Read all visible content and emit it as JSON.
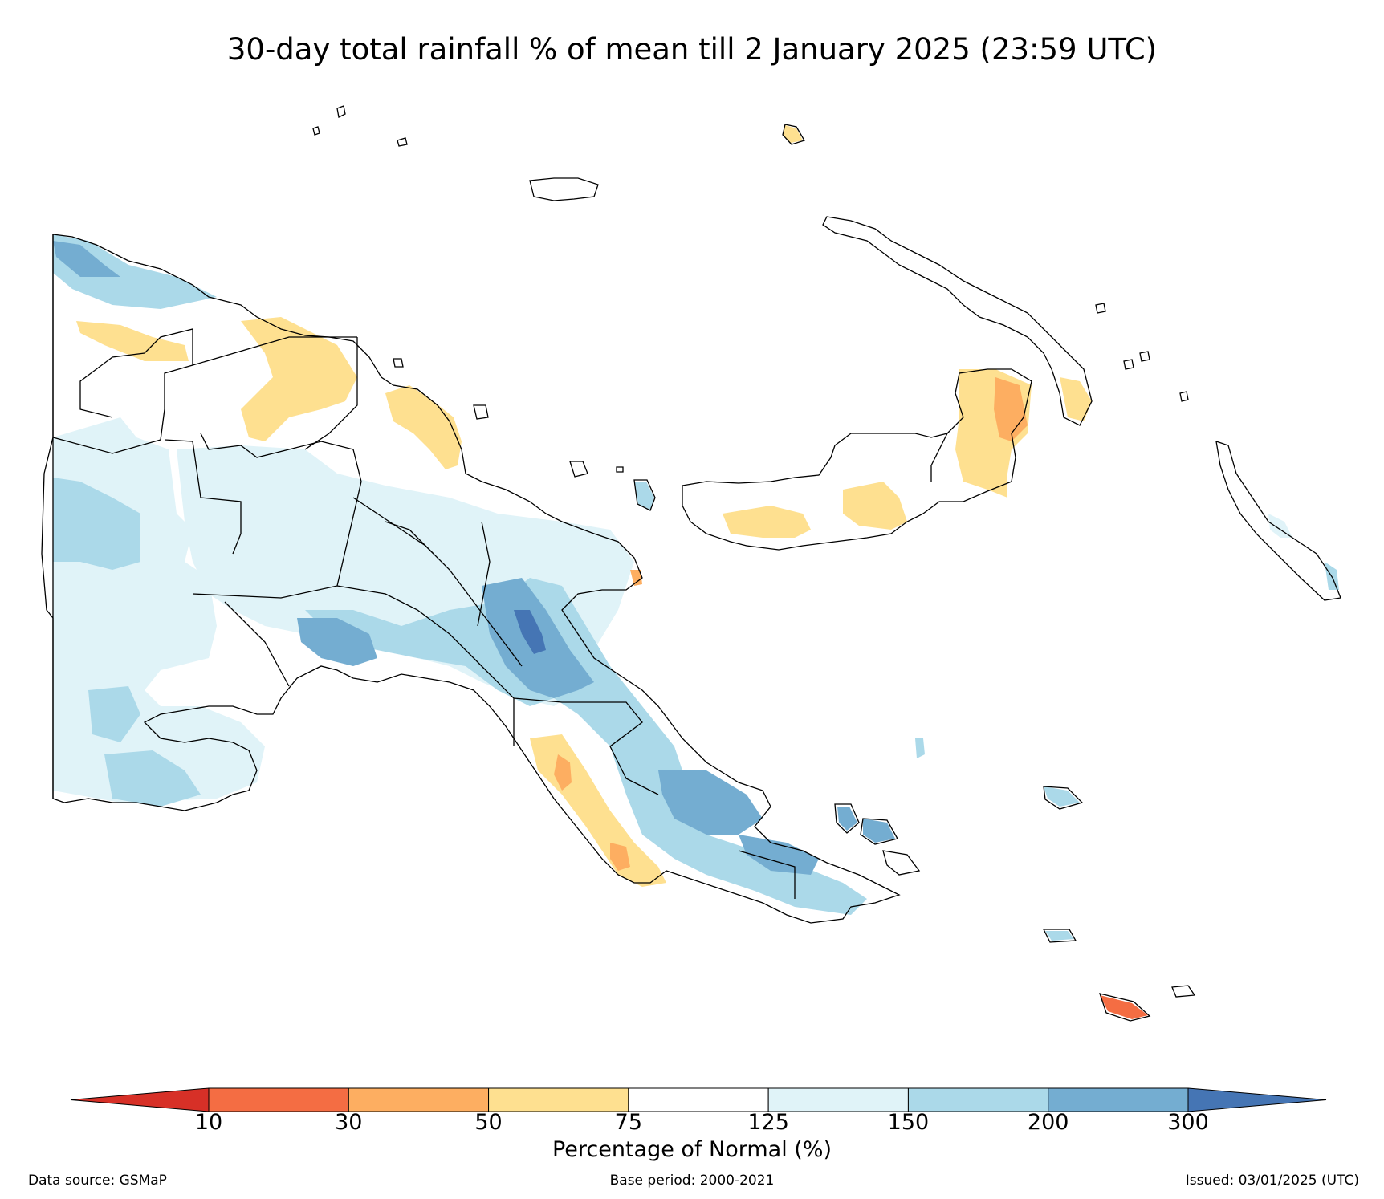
{
  "title": "30-day total rainfall % of mean till 2 January 2025 (23:59 UTC)",
  "legend": {
    "label": "Percentage of Normal (%)",
    "ticks": [
      "10",
      "30",
      "50",
      "75",
      "125",
      "150",
      "200",
      "300"
    ],
    "under_color": "#d73027",
    "over_color": "#4575b4",
    "bins": [
      {
        "range": "10-30",
        "color": "#f46d43"
      },
      {
        "range": "30-50",
        "color": "#fdae61"
      },
      {
        "range": "50-75",
        "color": "#fee090"
      },
      {
        "range": "75-125",
        "color": "#ffffff"
      },
      {
        "range": "125-150",
        "color": "#e0f3f8"
      },
      {
        "range": "150-200",
        "color": "#abd9e9"
      },
      {
        "range": "200-300",
        "color": "#74add1"
      }
    ]
  },
  "footer": {
    "source": "Data source: GSMaP",
    "base_period": "Base period: 2000-2021",
    "issued": "Issued: 03/01/2025 (UTC)"
  }
}
